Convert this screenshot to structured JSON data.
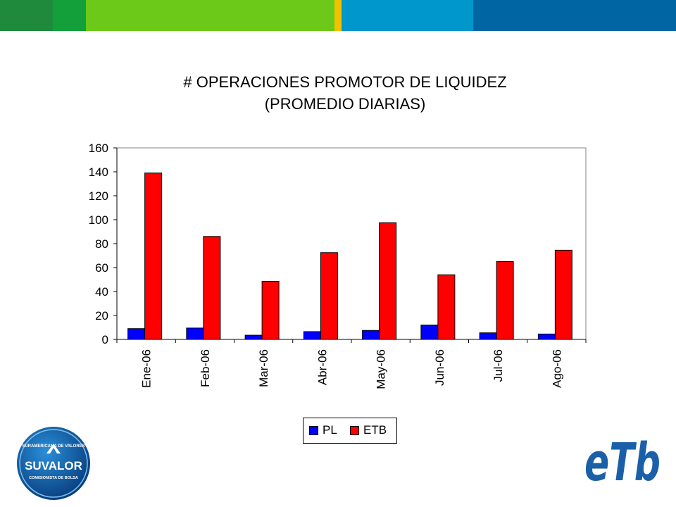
{
  "header": {
    "bar_colors": [
      "#1f8a3c",
      "#13a03a",
      "#6cc91a",
      "#f2c200",
      "#0097cc",
      "#0066a3"
    ]
  },
  "chart_data": {
    "type": "bar",
    "title": "# OPERACIONES PROMOTOR DE LIQUIDEZ",
    "subtitle": "(PROMEDIO DIARIAS)",
    "categories": [
      "Ene-06",
      "Feb-06",
      "Mar-06",
      "Abr-06",
      "May-06",
      "Jun-06",
      "Jul-06",
      "Ago-06"
    ],
    "series": [
      {
        "name": "PL",
        "color": "#0000ff",
        "values": [
          9,
          9.5,
          3.5,
          6.5,
          7.5,
          12,
          5.5,
          4.5
        ]
      },
      {
        "name": "ETB",
        "color": "#ff0000",
        "values": [
          139,
          86,
          48.5,
          72.5,
          97.5,
          54,
          65,
          74.5
        ]
      }
    ],
    "ylim": [
      0,
      160
    ],
    "yticks": [
      "0",
      "20",
      "40",
      "60",
      "80",
      "100",
      "120",
      "140",
      "160"
    ],
    "xlabel": "",
    "ylabel": "",
    "grid": false,
    "legend_position": "bottom"
  },
  "logos": {
    "left": {
      "icon": "suvalor-logo-icon",
      "top_text": "SURAMERICANA DE VALORES",
      "main_text": "SUVALOR",
      "bottom_text": "COMISIONISTA DE BOLSA"
    },
    "right": {
      "icon": "etb-logo-icon",
      "text": "eTb"
    }
  }
}
